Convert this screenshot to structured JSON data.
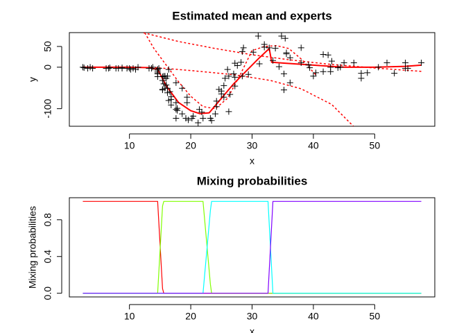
{
  "chart_data": [
    {
      "type": "scatter",
      "title": "Estimated mean and experts",
      "xlabel": "x",
      "ylabel": "y",
      "xlim": [
        0.2,
        59.8
      ],
      "ylim": [
        -142.4,
        83.4
      ],
      "xticks": [
        10,
        20,
        30,
        40,
        50
      ],
      "yticks": [
        -100,
        0,
        50
      ],
      "points": {
        "color": "#000000",
        "x": [
          2.4,
          2.6,
          3.2,
          3.6,
          4.0,
          6.2,
          6.6,
          6.8,
          7.8,
          8.2,
          8.8,
          8.8,
          9.6,
          10.0,
          10.2,
          10.6,
          11.0,
          11.4,
          13.2,
          13.6,
          13.8,
          14.6,
          14.6,
          14.6,
          14.6,
          14.6,
          14.6,
          14.8,
          15.4,
          15.4,
          15.4,
          15.4,
          15.6,
          15.6,
          15.8,
          15.8,
          16.0,
          16.0,
          16.2,
          16.2,
          16.2,
          16.4,
          16.4,
          16.6,
          16.8,
          16.8,
          16.8,
          17.6,
          17.6,
          17.6,
          17.6,
          17.8,
          17.8,
          18.6,
          18.6,
          19.2,
          19.4,
          19.4,
          19.6,
          20.2,
          20.4,
          21.2,
          21.4,
          21.8,
          22.0,
          23.2,
          23.4,
          24.0,
          24.2,
          24.2,
          24.6,
          25.0,
          25.0,
          25.4,
          25.4,
          25.6,
          26.0,
          26.2,
          26.2,
          26.4,
          27.0,
          27.2,
          27.2,
          27.2,
          27.6,
          28.2,
          28.4,
          28.4,
          28.6,
          29.4,
          30.2,
          31.0,
          31.2,
          32.0,
          32.0,
          32.8,
          33.4,
          33.8,
          34.4,
          34.8,
          35.2,
          35.2,
          35.4,
          35.6,
          35.6,
          36.2,
          36.2,
          38.0,
          38.0,
          39.2,
          39.4,
          40.0,
          40.4,
          41.6,
          41.6,
          42.4,
          42.8,
          42.8,
          43.0,
          44.0,
          44.4,
          45.0,
          46.6,
          47.8,
          47.8,
          48.8,
          50.6,
          52.0,
          53.2,
          55.0,
          55.0,
          55.4,
          57.6
        ],
        "y": [
          0,
          -1.3,
          -2.7,
          0,
          -2.7,
          -2.7,
          -2.7,
          -1.3,
          -2.7,
          -2.7,
          -1.3,
          -2.7,
          -2.7,
          -2.7,
          -5.4,
          -2.7,
          -5.4,
          0,
          -2.7,
          -2.7,
          0,
          -13.3,
          -5.4,
          -5.4,
          -9.3,
          -16,
          -22.8,
          -2.7,
          -22.8,
          -32.1,
          -53.5,
          -54.9,
          -40.2,
          -21.5,
          -21.5,
          -50.8,
          -42.9,
          -26.8,
          -21.5,
          -50.8,
          -61.7,
          -5.4,
          -80.4,
          -59,
          -71,
          -91.1,
          -77.7,
          -37.5,
          -85.6,
          -123.1,
          -101.9,
          -99.1,
          -104.4,
          -112.5,
          -50.8,
          -123.1,
          -85.6,
          -72.3,
          -127.2,
          -123.1,
          -117.9,
          -134,
          -101.9,
          -108.4,
          -123.1,
          -123.1,
          -128.5,
          -112.5,
          -95.1,
          -81.8,
          -53.5,
          -64.4,
          -57.6,
          -72.3,
          -44.3,
          -26.8,
          -5.4,
          -107.1,
          -21.5,
          -65.6,
          -16,
          -45.6,
          -24.2,
          9.5,
          4,
          12,
          -21.5,
          37.5,
          46.9,
          -17.4,
          36.2,
          75,
          8.1,
          54.9,
          48.2,
          46.9,
          16,
          45.6,
          1.3,
          75,
          -16,
          -54.9,
          69.6,
          34.8,
          32.1,
          -37.5,
          22.8,
          46.9,
          10.7,
          5.4,
          -1.3,
          -21.5,
          -13.3,
          30.8,
          -10.7,
          29.4,
          0,
          -10.7,
          14.7,
          -1.3,
          0,
          10.7,
          10.7,
          -26.8,
          -14.7,
          -13.3,
          0,
          10.7,
          -14.7,
          -2.7,
          10.7,
          -2.7,
          10.7
        ]
      },
      "lines": [
        {
          "color": "#ff0000",
          "dash": false,
          "x": [
            2.4,
            10,
            13,
            14.6,
            16,
            18,
            20,
            21.5,
            23,
            25,
            27,
            29,
            31,
            32.8,
            33.2,
            35,
            40,
            45,
            50,
            55,
            57.6
          ],
          "y": [
            0,
            0,
            -1,
            -5,
            -45,
            -85,
            -105,
            -112,
            -110,
            -75,
            -40,
            -10,
            20,
            45,
            12,
            10,
            5,
            0,
            0,
            2,
            5
          ]
        },
        {
          "color": "#ff0000",
          "dash": true,
          "x": [
            12.3,
            18,
            24,
            30,
            36,
            42,
            50,
            57.6
          ],
          "y": [
            83,
            62,
            45,
            30,
            18,
            8,
            -2,
            -10
          ]
        },
        {
          "color": "#ff0000",
          "dash": true,
          "x": [
            13.5,
            20,
            27,
            33,
            38,
            43,
            46.5
          ],
          "y": [
            0,
            -8,
            -18,
            -32,
            -52,
            -90,
            -142
          ]
        },
        {
          "color": "#ff0000",
          "dash": true,
          "x": [
            12.5,
            14,
            16,
            18,
            20,
            22,
            24,
            26,
            28,
            30,
            32,
            34,
            36,
            38,
            40.5
          ],
          "y": [
            83,
            45,
            5,
            -35,
            -70,
            -95,
            -100,
            -75,
            -20,
            40,
            50,
            52,
            45,
            20,
            -20
          ]
        }
      ]
    },
    {
      "type": "line",
      "title": "Mixing probabilities",
      "xlabel": "x",
      "ylabel": "Mixing probabilities",
      "xlim": [
        0.2,
        59.8
      ],
      "ylim": [
        -0.04,
        1.04
      ],
      "xticks": [
        10,
        20,
        30,
        40,
        50
      ],
      "yticks": [
        {
          "value": 0,
          "label": "0.0"
        },
        {
          "value": 0.4,
          "label": "0.4"
        },
        {
          "value": 0.8,
          "label": "0.8"
        }
      ],
      "x": [
        2.4,
        14.6,
        15.4,
        15.6,
        22.0,
        23.2,
        23.4,
        32.6,
        33.0,
        33.4,
        57.6
      ],
      "series": [
        {
          "color": "#ff0000",
          "values": [
            1,
            1,
            0.05,
            0,
            0,
            0,
            0,
            0,
            0,
            0,
            0
          ]
        },
        {
          "color": "#80ff00",
          "values": [
            0,
            0,
            0.95,
            1,
            1,
            0.1,
            0,
            0,
            0,
            0,
            0
          ]
        },
        {
          "color": "#00ffff",
          "values": [
            0,
            0,
            0,
            0,
            0,
            0.9,
            1,
            1,
            0.5,
            0,
            0
          ]
        },
        {
          "color": "#8000ff",
          "values": [
            0,
            0,
            0,
            0,
            0,
            0,
            0,
            0,
            0.5,
            1,
            1
          ]
        }
      ]
    }
  ]
}
